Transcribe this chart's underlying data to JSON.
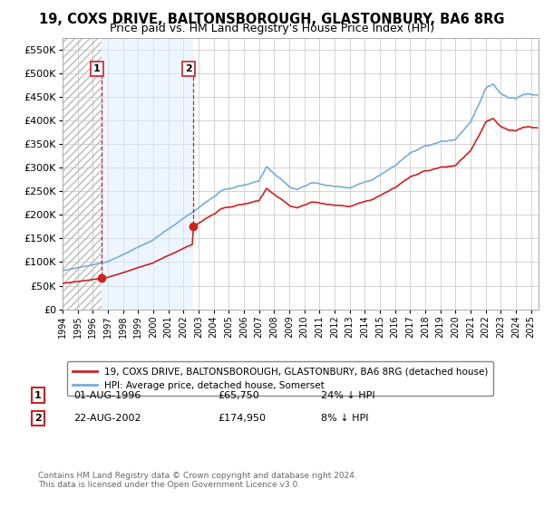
{
  "title_line1": "19, COXS DRIVE, BALTONSBOROUGH, GLASTONBURY, BA6 8RG",
  "title_line2": "Price paid vs. HM Land Registry's House Price Index (HPI)",
  "title_fontsize": 10.5,
  "subtitle_fontsize": 9,
  "hpi_color": "#7aacd6",
  "price_color": "#cc2222",
  "marker_color": "#cc2222",
  "shade_color": "#ddeeff",
  "background_color": "#ffffff",
  "grid_color": "#cccccc",
  "sale1_date_x": 1996.58,
  "sale1_price": 65750,
  "sale2_date_x": 2002.64,
  "sale2_price": 174950,
  "footer_text": "Contains HM Land Registry data © Crown copyright and database right 2024.\nThis data is licensed under the Open Government Licence v3.0.",
  "legend_line1": "19, COXS DRIVE, BALTONSBOROUGH, GLASTONBURY, BA6 8RG (detached house)",
  "legend_line2": "HPI: Average price, detached house, Somerset",
  "xmin": 1994.0,
  "xmax": 2025.5,
  "ylim": [
    0,
    575000
  ],
  "yticks": [
    0,
    50000,
    100000,
    150000,
    200000,
    250000,
    300000,
    350000,
    400000,
    450000,
    500000,
    550000
  ],
  "ytick_labels": [
    "£0",
    "£50K",
    "£100K",
    "£150K",
    "£200K",
    "£250K",
    "£300K",
    "£350K",
    "£400K",
    "£450K",
    "£500K",
    "£550K"
  ]
}
